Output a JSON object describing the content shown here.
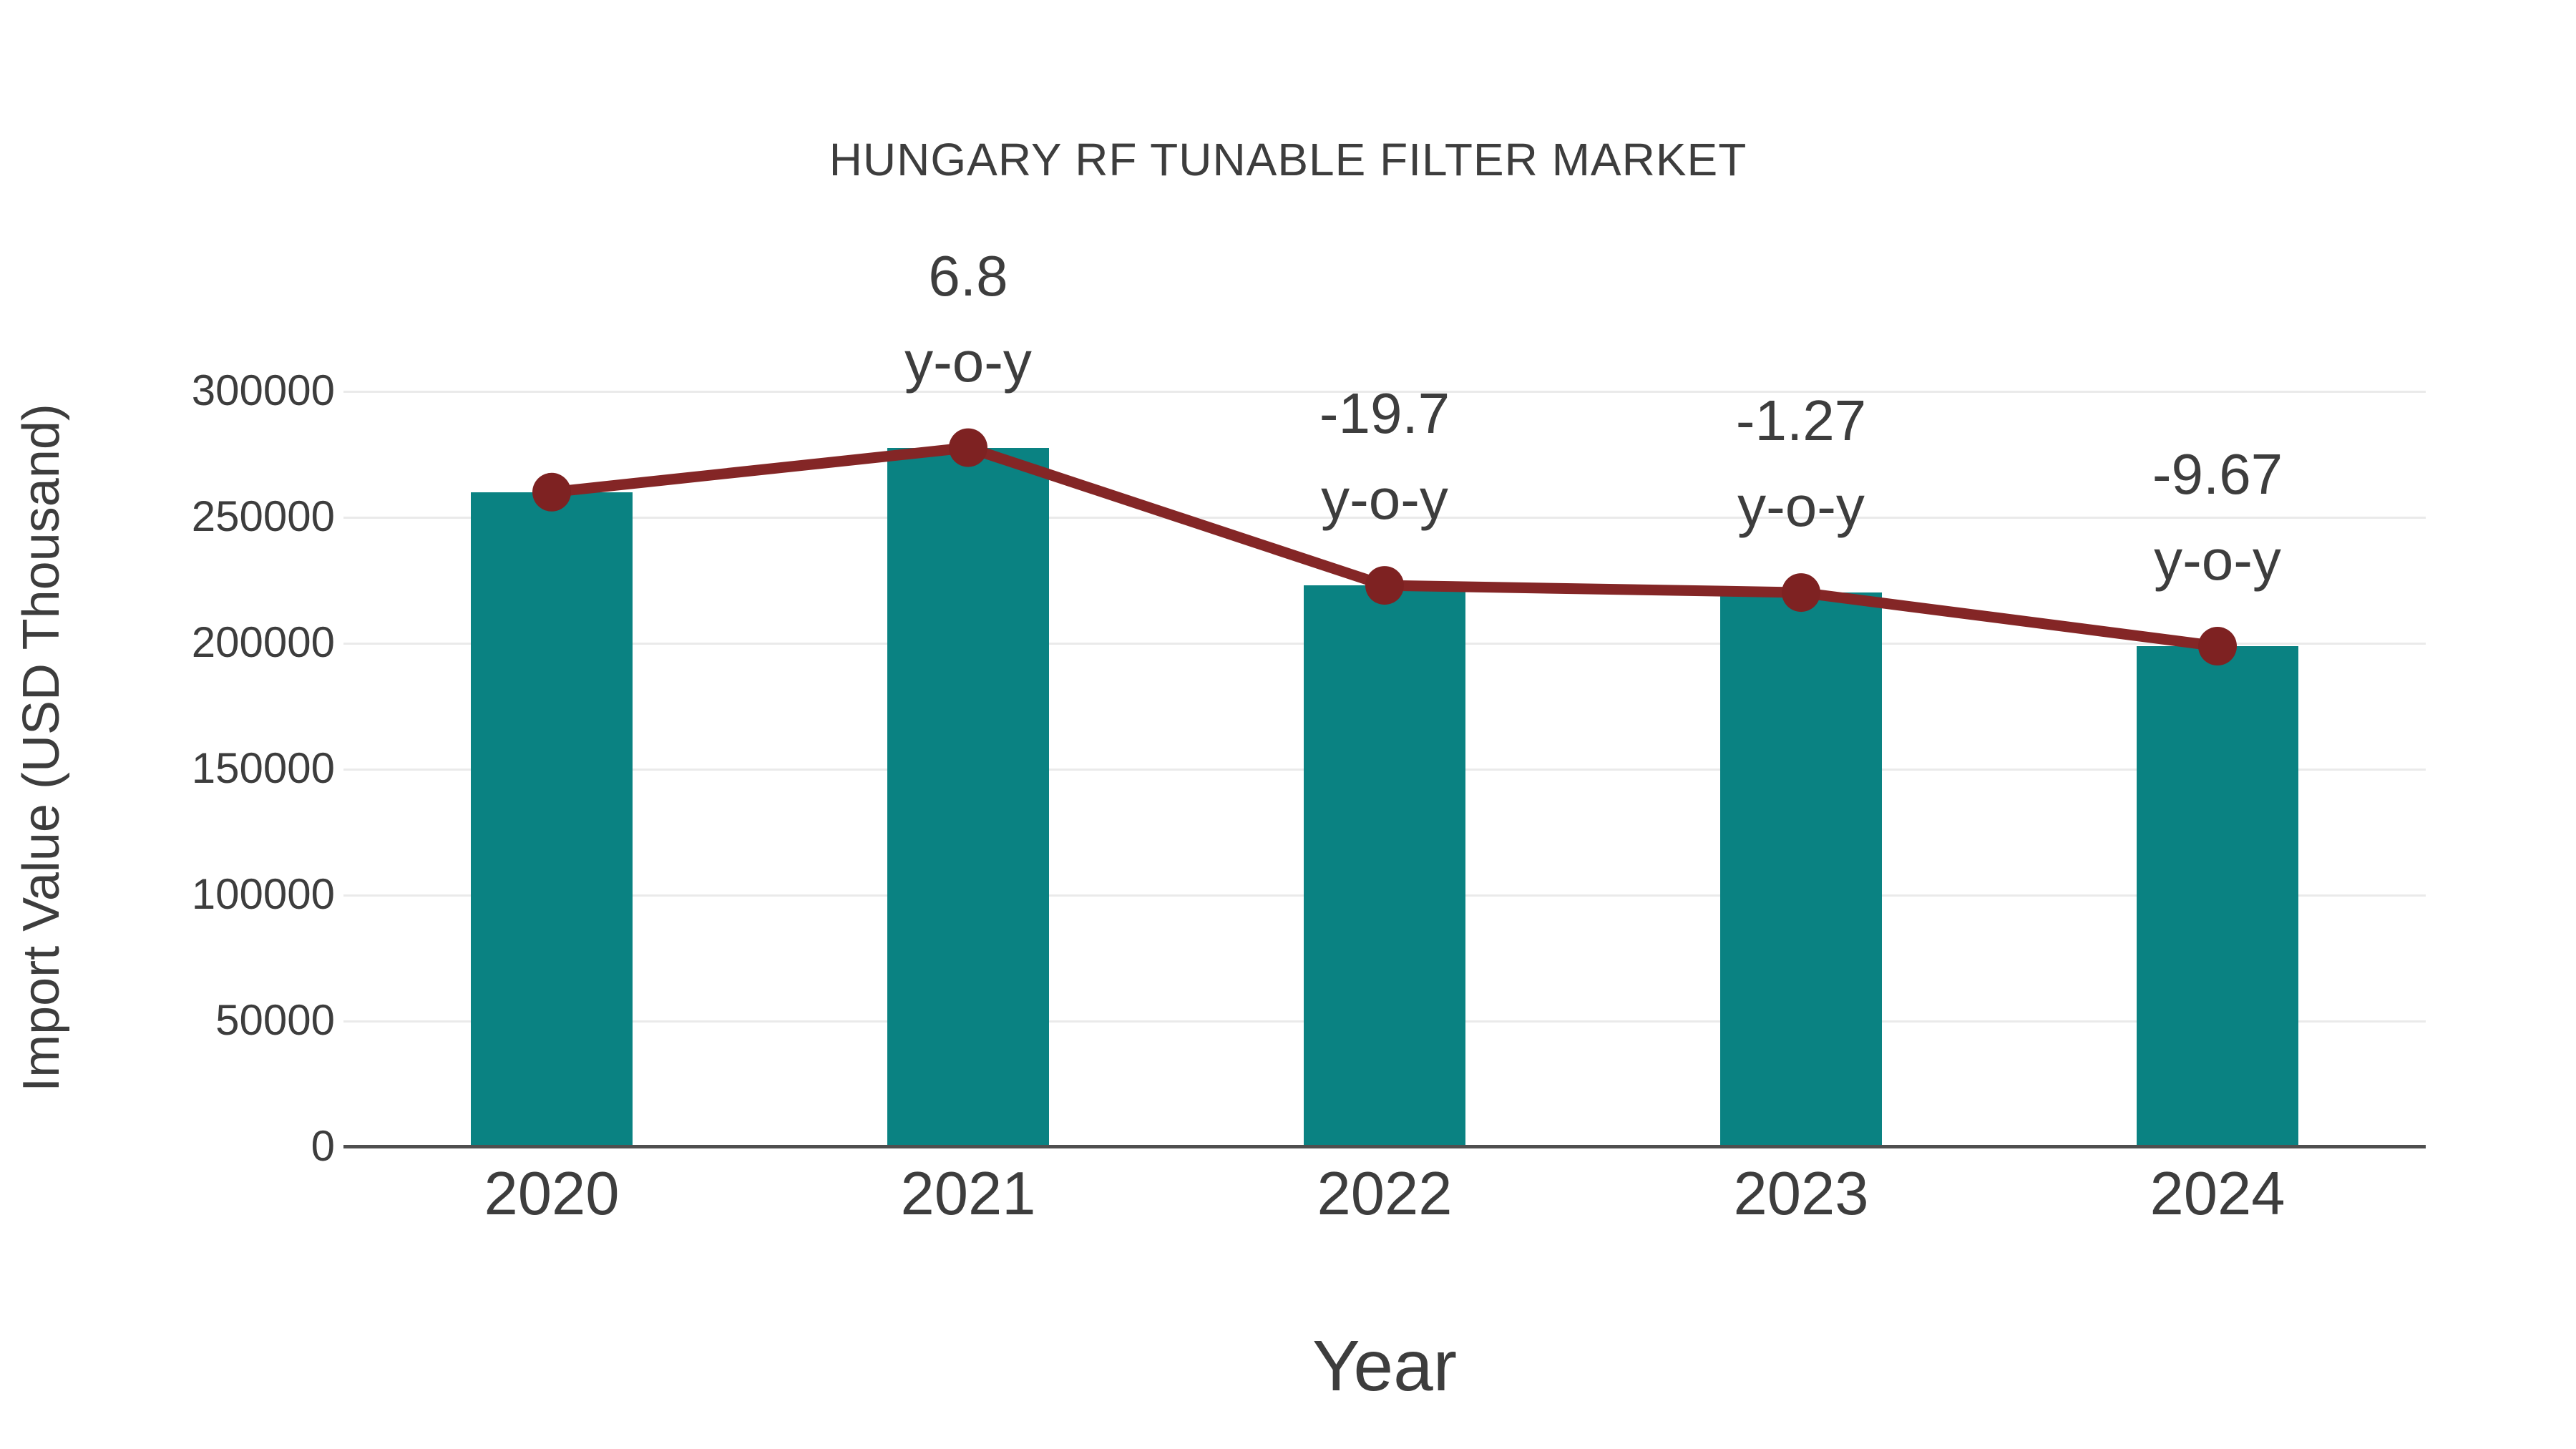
{
  "title": "HUNGARY RF TUNABLE FILTER MARKET",
  "colors": {
    "bar": "#0a8282",
    "line": "#842626",
    "marker": "#7e2222",
    "grid": "#eaeaea",
    "axis": "#4f4f4f",
    "text": "#3d3d3d",
    "background": "#ffffff"
  },
  "chart_data": {
    "type": "bar",
    "title": "HUNGARY RF TUNABLE FILTER MARKET",
    "xlabel": "Year",
    "ylabel": "Import Value (USD Thousand)",
    "categories": [
      "2020",
      "2021",
      "2022",
      "2023",
      "2024"
    ],
    "series": [
      {
        "name": "Import Value bars",
        "type": "bar",
        "values": [
          260000,
          277680,
          222980,
          220150,
          198860
        ]
      },
      {
        "name": "Import Value trend line",
        "type": "line",
        "values": [
          260000,
          277680,
          222980,
          220150,
          198860
        ]
      }
    ],
    "annotations": [
      {
        "category": "2021",
        "lines": [
          "6.8",
          "y-o-y"
        ]
      },
      {
        "category": "2022",
        "lines": [
          "-19.7",
          "y-o-y"
        ]
      },
      {
        "category": "2023",
        "lines": [
          "-1.27",
          "y-o-y"
        ]
      },
      {
        "category": "2024",
        "lines": [
          "-9.67",
          "y-o-y"
        ]
      }
    ],
    "ylim": [
      0,
      300000
    ],
    "yticks": [
      0,
      50000,
      100000,
      150000,
      200000,
      250000,
      300000
    ],
    "grid": "horizontal",
    "legend": "none"
  }
}
